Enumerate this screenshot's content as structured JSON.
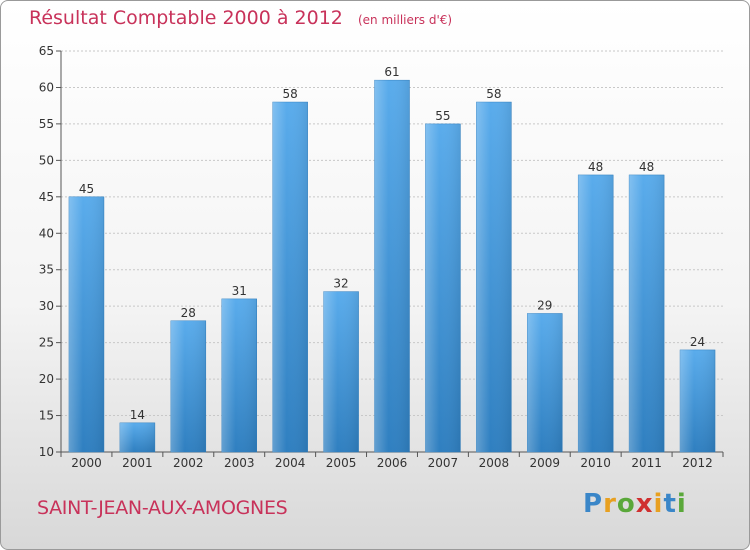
{
  "header": {
    "title": "Résultat Comptable 2000 à 2012",
    "subtitle": "(en milliers d'€)"
  },
  "footer": {
    "commune": "SAINT-JEAN-AUX-AMOGNES",
    "logo_text": "Proxiti",
    "logo_letters": [
      {
        "char": "P",
        "color": "#3a86c8"
      },
      {
        "char": "r",
        "color": "#e8a020"
      },
      {
        "char": "o",
        "color": "#5aa83a"
      },
      {
        "char": "x",
        "color": "#d03030"
      },
      {
        "char": "i",
        "color": "#e8a020"
      },
      {
        "char": "t",
        "color": "#3a86c8"
      },
      {
        "char": "i",
        "color": "#5aa83a"
      }
    ]
  },
  "colors": {
    "bar": "#3d93d6",
    "bar_light": "#5aacec",
    "axis_text": "#333333",
    "grid": "#c8c8c8"
  },
  "chart_data": {
    "type": "bar",
    "title": "Résultat Comptable 2000 à 2012",
    "subtitle": "(en milliers d'€)",
    "categories": [
      "2000",
      "2001",
      "2002",
      "2003",
      "2004",
      "2005",
      "2006",
      "2007",
      "2008",
      "2009",
      "2010",
      "2011",
      "2012"
    ],
    "values": [
      45,
      14,
      28,
      31,
      58,
      32,
      61,
      55,
      58,
      29,
      48,
      48,
      24
    ],
    "data_labels": [
      "45",
      "14",
      "28",
      "31",
      "58",
      "32",
      "61",
      "55",
      "58",
      "29",
      "48",
      "48",
      "24"
    ],
    "ylim": [
      10,
      65
    ],
    "yticks": [
      10,
      15,
      20,
      25,
      30,
      35,
      40,
      45,
      50,
      55,
      60,
      65
    ],
    "ytick_labels": [
      "10",
      "15",
      "20",
      "25",
      "30",
      "35",
      "40",
      "45",
      "50",
      "55",
      "60",
      "65"
    ],
    "grid": true,
    "legend": "none"
  }
}
